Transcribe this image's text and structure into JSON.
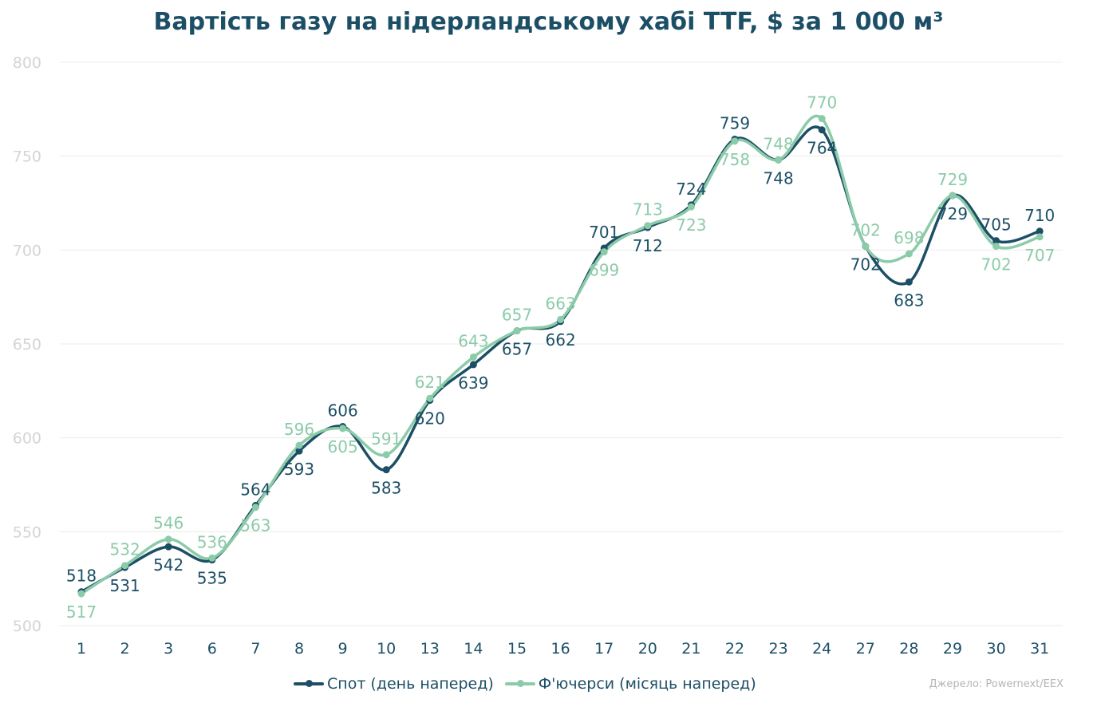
{
  "colors": {
    "spot": "#1c4f66",
    "futures": "#8ccba9",
    "grid": "#ececec",
    "y_tick": "#d4d4d4",
    "x_tick": "#1c4f66",
    "title": "#1c4f66"
  },
  "legend": {
    "spot_label": "Спот (день наперед)",
    "futures_label": "Ф'ючерси (місяць наперед)"
  },
  "source": "Джерело: Powernext/EEX",
  "chart_data": {
    "type": "line",
    "title": "Вартість газу на нідерландському хабі TTF, $ за 1 000 м³",
    "xlabel": "",
    "ylabel": "",
    "ylim": [
      500,
      800
    ],
    "yticks": [
      500,
      550,
      600,
      650,
      700,
      750,
      800
    ],
    "grid": true,
    "legend_position": "bottom",
    "smooth": true,
    "categories": [
      "1",
      "2",
      "3",
      "6",
      "7",
      "8",
      "9",
      "10",
      "13",
      "14",
      "15",
      "16",
      "17",
      "20",
      "21",
      "22",
      "23",
      "24",
      "27",
      "28",
      "29",
      "30",
      "31"
    ],
    "series": [
      {
        "name": "Спот (день наперед)",
        "values": [
          518,
          531,
          542,
          535,
          564,
          593,
          606,
          583,
          620,
          639,
          657,
          662,
          701,
          712,
          724,
          759,
          748,
          764,
          702,
          683,
          729,
          705,
          710
        ]
      },
      {
        "name": "Ф'ючерси (місяць наперед)",
        "values": [
          517,
          532,
          546,
          536,
          563,
          596,
          605,
          591,
          621,
          643,
          657,
          663,
          699,
          713,
          723,
          758,
          748,
          770,
          702,
          698,
          729,
          702,
          707
        ]
      }
    ]
  }
}
